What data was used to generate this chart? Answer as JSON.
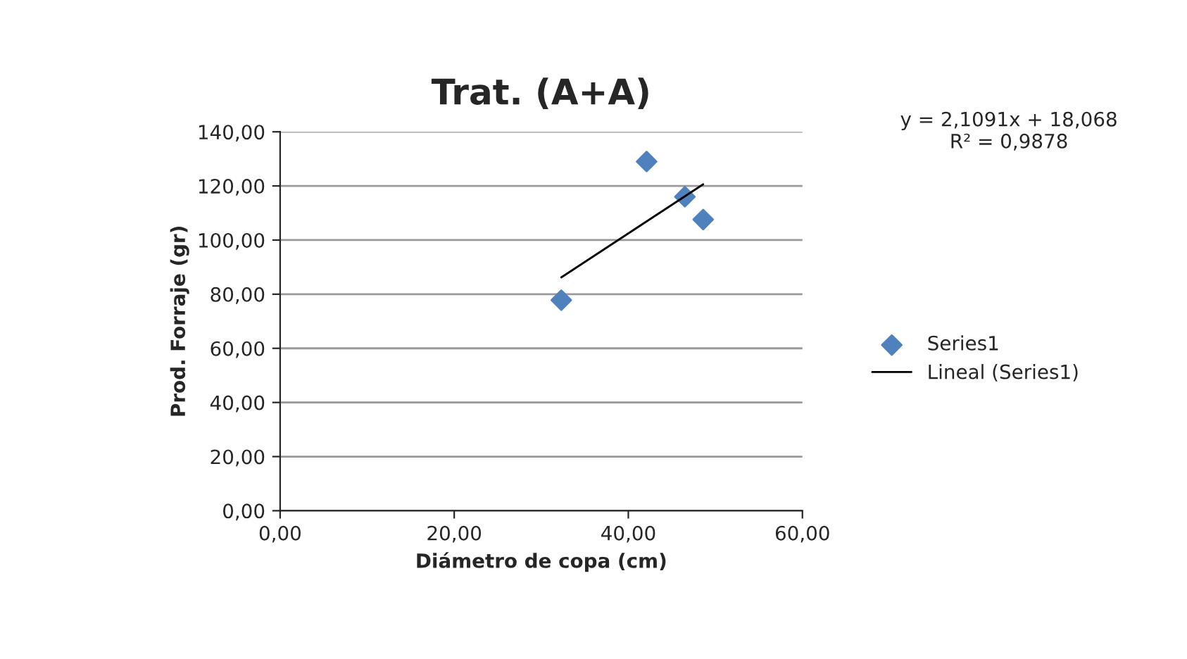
{
  "chart_data": {
    "type": "scatter",
    "title": "Trat. (A+A)",
    "xlabel": "Diámetro de copa (cm)",
    "ylabel": "Prod. Forraje (gr)",
    "x": [
      32.3,
      42.1,
      46.5,
      48.6
    ],
    "series": [
      {
        "name": "Series1",
        "color": "#4f81bd",
        "values": [
          77.8,
          129,
          116,
          107.6
        ],
        "marker": "diamond"
      },
      {
        "name": "Lineal (Series1)",
        "type": "line",
        "color": "#000000",
        "x": [
          32.3,
          48.6
        ],
        "values": [
          86.2,
          120.6
        ],
        "marker": "none",
        "line_style": "solid"
      }
    ],
    "xlim": [
      0,
      60
    ],
    "ylim": [
      0,
      140
    ],
    "xticks": [
      {
        "value": 0,
        "label": "0,00"
      },
      {
        "value": 20,
        "label": "20,00"
      },
      {
        "value": 40,
        "label": "40,00"
      },
      {
        "value": 60,
        "label": "60,00"
      }
    ],
    "yticks": [
      {
        "value": 0,
        "label": "0,00"
      },
      {
        "value": 20,
        "label": "20,00"
      },
      {
        "value": 40,
        "label": "40,00"
      },
      {
        "value": 60,
        "label": "60,00"
      },
      {
        "value": 80,
        "label": "80,00"
      },
      {
        "value": 100,
        "label": "100,00"
      },
      {
        "value": 120,
        "label": "120,00"
      },
      {
        "value": 140,
        "label": "140,00"
      }
    ],
    "annotations": [
      "y = 2,1091x + 18,068\nR² = 0,9878"
    ],
    "grid": "y",
    "legend": "right"
  }
}
